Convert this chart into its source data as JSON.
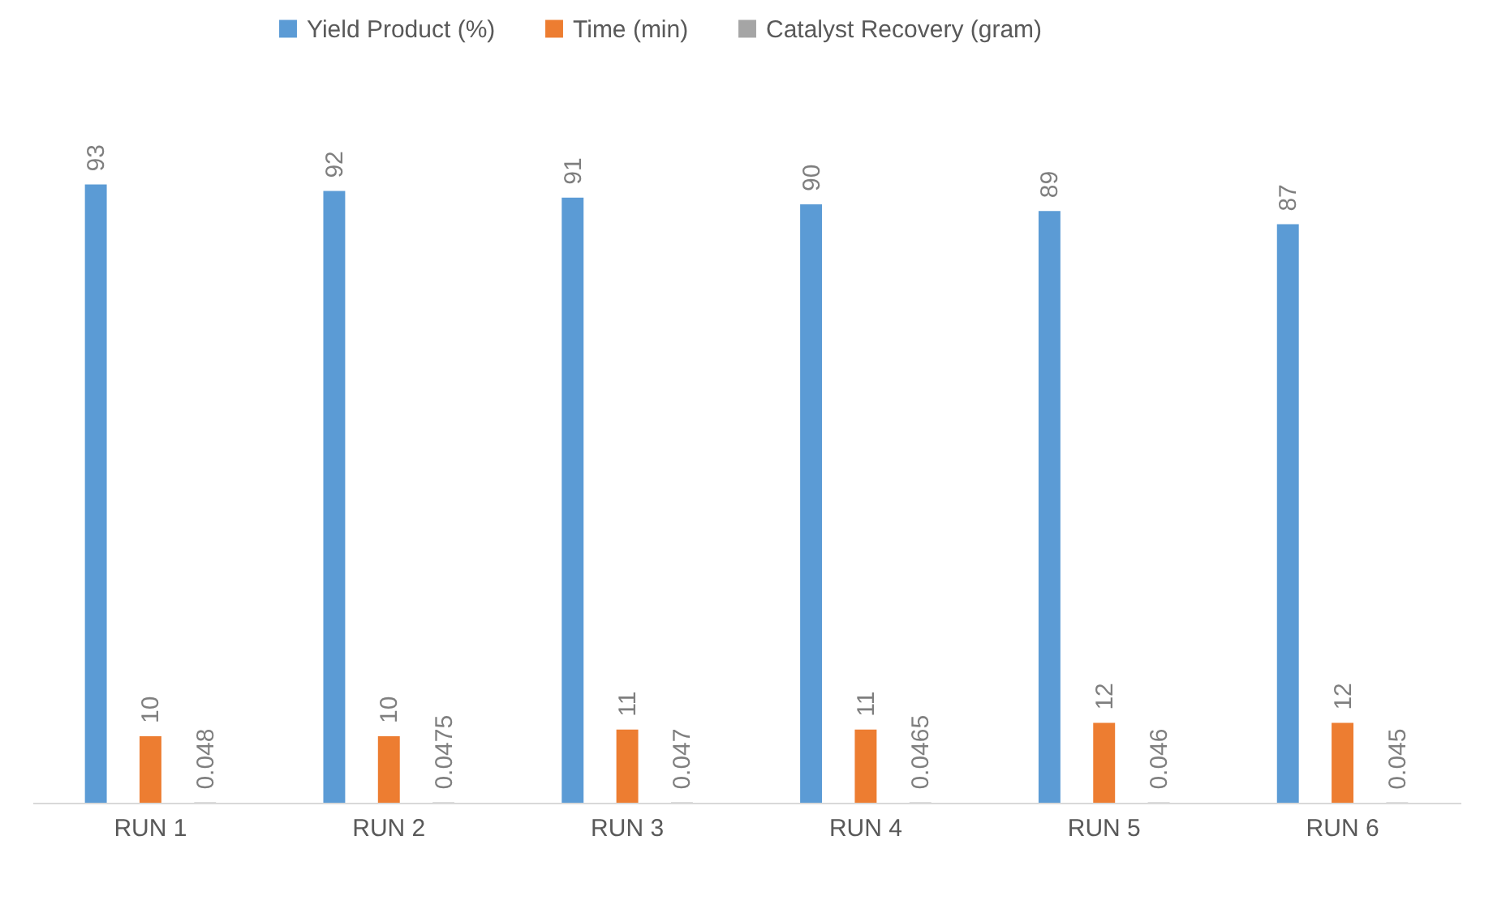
{
  "chart_data": {
    "type": "bar",
    "categories": [
      "RUN 1",
      "RUN 2",
      "RUN 3",
      "RUN 4",
      "RUN 5",
      "RUN 6"
    ],
    "series": [
      {
        "name": "Yield Product (%)",
        "color": "#5b9bd5",
        "values": [
          93,
          92,
          91,
          90,
          89,
          87
        ]
      },
      {
        "name": "Time (min)",
        "color": "#ed7d31",
        "values": [
          10,
          10,
          11,
          11,
          12,
          12
        ]
      },
      {
        "name": "Catalyst Recovery (gram)",
        "color": "#a5a5a5",
        "values": [
          0.048,
          0.0475,
          0.047,
          0.0465,
          0.046,
          0.045
        ]
      }
    ],
    "data_labels": true,
    "legend": "top"
  }
}
